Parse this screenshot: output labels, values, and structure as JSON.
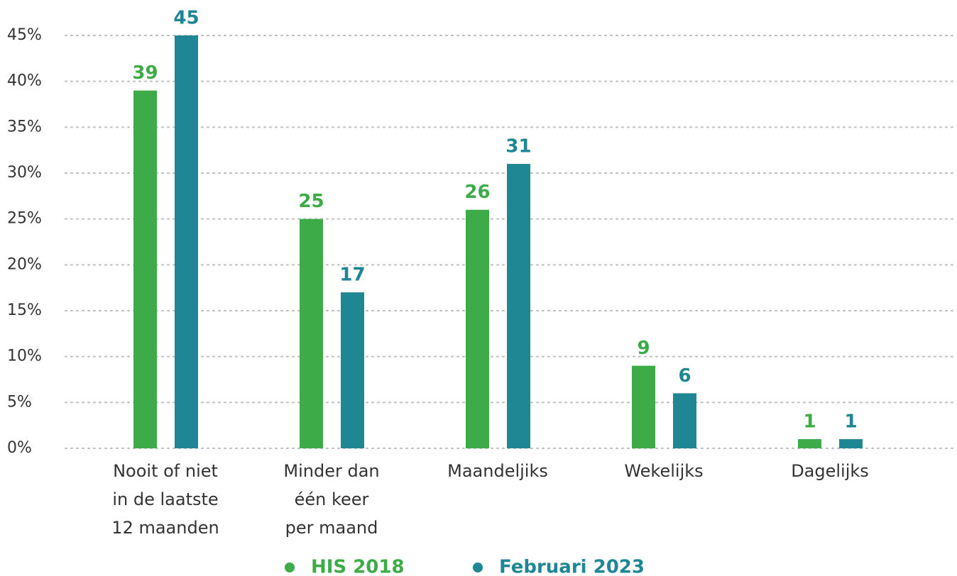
{
  "chart_data": {
    "type": "bar",
    "categories": [
      "Nooit of niet\nin de laatste\n12 maanden",
      "Minder dan\néén keer\nper maand",
      "Maandeljiks",
      "Wekelijks",
      "Dagelijks"
    ],
    "series": [
      {
        "name": "HIS 2018",
        "color": "#3dab47",
        "values": [
          39,
          25,
          26,
          9,
          1
        ]
      },
      {
        "name": "Februari 2023",
        "color": "#1f8694",
        "values": [
          45,
          17,
          31,
          6,
          1
        ]
      }
    ],
    "ylim": [
      0,
      45
    ],
    "yticks": [
      {
        "value": 0,
        "label": "0%"
      },
      {
        "value": 5,
        "label": "5%"
      },
      {
        "value": 10,
        "label": "10%"
      },
      {
        "value": 15,
        "label": "15%"
      },
      {
        "value": 20,
        "label": "20%"
      },
      {
        "value": 25,
        "label": "25%"
      },
      {
        "value": 30,
        "label": "30%"
      },
      {
        "value": 35,
        "label": "35%"
      },
      {
        "value": 40,
        "label": "40%"
      },
      {
        "value": 45,
        "label": "45%"
      }
    ],
    "grid": true,
    "legend": "bottom"
  }
}
